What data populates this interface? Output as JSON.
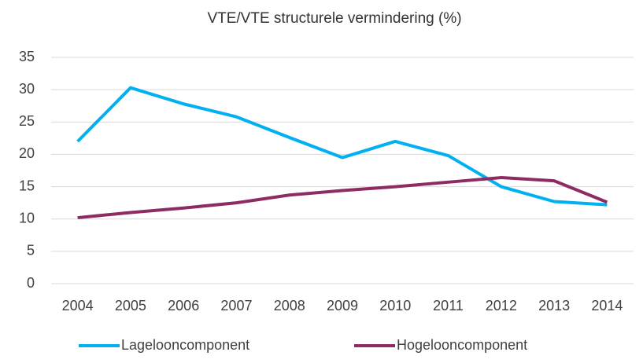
{
  "chart_data": {
    "type": "line",
    "title": "VTE/VTE  structurele vermindering  (%)",
    "categories": [
      "2004",
      "2005",
      "2006",
      "2007",
      "2008",
      "2009",
      "2010",
      "2011",
      "2012",
      "2013",
      "2014"
    ],
    "series": [
      {
        "name": "Lagelooncomponent",
        "color": "#00b0f0",
        "values": [
          22,
          30.3,
          27.8,
          25.8,
          22.6,
          19.5,
          22,
          19.8,
          15,
          12.7,
          12.2
        ]
      },
      {
        "name": "Hogelooncomponent",
        "color": "#8e2b63",
        "values": [
          10.2,
          11,
          11.7,
          12.5,
          13.7,
          14.4,
          15,
          15.7,
          16.4,
          15.9,
          12.6
        ]
      }
    ],
    "ylim": [
      0,
      35
    ],
    "yticks": [
      0,
      5,
      10,
      15,
      20,
      25,
      30,
      35
    ],
    "grid": true,
    "legend": "bottom"
  }
}
